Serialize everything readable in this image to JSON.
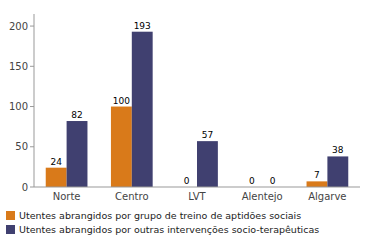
{
  "chart_data": {
    "type": "bar",
    "categories": [
      "Norte",
      "Centro",
      "LVT",
      "Alentejo",
      "Algarve"
    ],
    "series": [
      {
        "name": "Utentes abrangidos por grupo de treino de aptidões sociais",
        "color": "#D97A1A",
        "values": [
          24,
          100,
          0,
          0,
          7
        ]
      },
      {
        "name": "Utentes abrangidos por outras intervenções socio-terapêuticas",
        "color": "#404070",
        "values": [
          82,
          193,
          57,
          0,
          38
        ]
      }
    ],
    "ylim": [
      0,
      215
    ],
    "yticks": [
      0,
      50,
      100,
      150,
      200
    ],
    "data_labels": true,
    "grid": false,
    "legend": "bottom"
  }
}
